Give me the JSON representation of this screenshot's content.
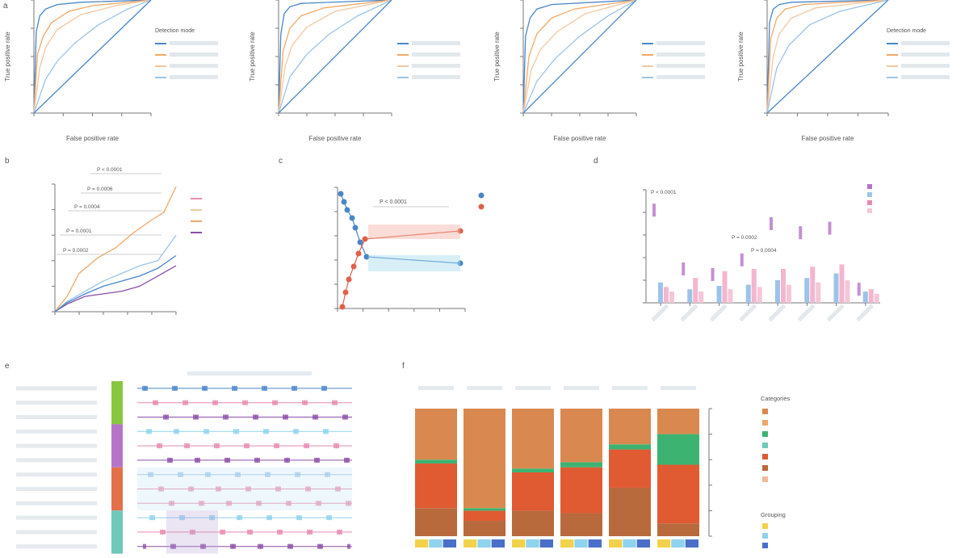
{
  "colors": {
    "blue": "#4a86c8",
    "orange": "#f0a868",
    "peach": "#f4c7a0",
    "lightblue": "#9cc4e8",
    "purple": "#8b4fa8",
    "pink": "#e889b0",
    "cyan": "#7ec8e3",
    "red": "#e0604a",
    "green": "#8ac540",
    "violet": "#b475c8",
    "coral": "#e4704a",
    "teal": "#6fc9b8",
    "tan": "#d9894f",
    "dark_tan": "#b86a3c",
    "red_orange": "#e05a32",
    "bright_green": "#3cb371",
    "yellow": "#f2d24a",
    "sky": "#8fd3ee",
    "navy": "#4a6fc8"
  },
  "chart_data": [
    {
      "type": "line",
      "panel": "a1",
      "xlabel": "False positive rate",
      "ylabel": "True positive rate",
      "xlim": [
        0,
        1
      ],
      "ylim": [
        0,
        1
      ],
      "legend_title": "Detection mode",
      "series": [
        {
          "name": "",
          "color": "#4a86c8",
          "points": [
            [
              0,
              0
            ],
            [
              0.02,
              0.72
            ],
            [
              0.05,
              0.86
            ],
            [
              0.1,
              0.92
            ],
            [
              0.2,
              0.96
            ],
            [
              0.4,
              0.98
            ],
            [
              1,
              1
            ]
          ]
        },
        {
          "name": "",
          "color": "#f0a868",
          "points": [
            [
              0,
              0
            ],
            [
              0.03,
              0.52
            ],
            [
              0.08,
              0.68
            ],
            [
              0.15,
              0.8
            ],
            [
              0.3,
              0.9
            ],
            [
              0.5,
              0.95
            ],
            [
              1,
              1
            ]
          ]
        },
        {
          "name": "",
          "color": "#f4c7a0",
          "points": [
            [
              0,
              0
            ],
            [
              0.05,
              0.4
            ],
            [
              0.1,
              0.58
            ],
            [
              0.2,
              0.74
            ],
            [
              0.4,
              0.87
            ],
            [
              0.7,
              0.95
            ],
            [
              1,
              1
            ]
          ]
        },
        {
          "name": "",
          "color": "#9cc4e8",
          "points": [
            [
              0,
              0
            ],
            [
              0.1,
              0.3
            ],
            [
              0.2,
              0.46
            ],
            [
              0.35,
              0.62
            ],
            [
              0.55,
              0.78
            ],
            [
              0.8,
              0.92
            ],
            [
              1,
              1
            ]
          ]
        },
        {
          "name": "",
          "color": "#4a86c8",
          "dashed": true,
          "points": [
            [
              0,
              0
            ],
            [
              1,
              1
            ]
          ]
        }
      ]
    },
    {
      "type": "line",
      "panel": "a2",
      "xlabel": "False positive rate",
      "ylabel": "True positive rate",
      "xlim": [
        0,
        1
      ],
      "ylim": [
        0,
        1
      ],
      "series": [
        {
          "name": "",
          "color": "#4a86c8",
          "points": [
            [
              0,
              0
            ],
            [
              0.02,
              0.7
            ],
            [
              0.05,
              0.88
            ],
            [
              0.1,
              0.94
            ],
            [
              0.2,
              0.97
            ],
            [
              1,
              1
            ]
          ]
        },
        {
          "name": "",
          "color": "#f0a868",
          "points": [
            [
              0,
              0
            ],
            [
              0.04,
              0.55
            ],
            [
              0.1,
              0.75
            ],
            [
              0.2,
              0.86
            ],
            [
              0.4,
              0.93
            ],
            [
              1,
              1
            ]
          ]
        },
        {
          "name": "",
          "color": "#f4c7a0",
          "points": [
            [
              0,
              0
            ],
            [
              0.06,
              0.42
            ],
            [
              0.12,
              0.6
            ],
            [
              0.25,
              0.76
            ],
            [
              0.5,
              0.9
            ],
            [
              1,
              1
            ]
          ]
        },
        {
          "name": "",
          "color": "#9cc4e8",
          "points": [
            [
              0,
              0
            ],
            [
              0.1,
              0.32
            ],
            [
              0.25,
              0.52
            ],
            [
              0.45,
              0.7
            ],
            [
              0.7,
              0.86
            ],
            [
              1,
              1
            ]
          ]
        },
        {
          "name": "",
          "color": "#4a86c8",
          "dashed": true,
          "points": [
            [
              0,
              0
            ],
            [
              1,
              1
            ]
          ]
        }
      ]
    },
    {
      "type": "line",
      "panel": "a3",
      "xlabel": "False positive rate",
      "ylabel": "True positive rate",
      "xlim": [
        0,
        1
      ],
      "ylim": [
        0,
        1
      ],
      "series": [
        {
          "name": "",
          "color": "#4a86c8",
          "points": [
            [
              0,
              0
            ],
            [
              0.02,
              0.68
            ],
            [
              0.06,
              0.84
            ],
            [
              0.12,
              0.92
            ],
            [
              0.25,
              0.96
            ],
            [
              1,
              1
            ]
          ]
        },
        {
          "name": "",
          "color": "#f0a868",
          "points": [
            [
              0,
              0
            ],
            [
              0.05,
              0.5
            ],
            [
              0.12,
              0.7
            ],
            [
              0.25,
              0.84
            ],
            [
              0.45,
              0.92
            ],
            [
              1,
              1
            ]
          ]
        },
        {
          "name": "",
          "color": "#f4c7a0",
          "points": [
            [
              0,
              0
            ],
            [
              0.07,
              0.38
            ],
            [
              0.15,
              0.56
            ],
            [
              0.3,
              0.72
            ],
            [
              0.55,
              0.88
            ],
            [
              1,
              1
            ]
          ]
        },
        {
          "name": "",
          "color": "#9cc4e8",
          "points": [
            [
              0,
              0
            ],
            [
              0.12,
              0.28
            ],
            [
              0.28,
              0.48
            ],
            [
              0.5,
              0.68
            ],
            [
              0.75,
              0.86
            ],
            [
              1,
              1
            ]
          ]
        },
        {
          "name": "",
          "color": "#4a86c8",
          "dashed": true,
          "points": [
            [
              0,
              0
            ],
            [
              1,
              1
            ]
          ]
        }
      ]
    },
    {
      "type": "line",
      "panel": "a4",
      "xlabel": "False positive rate",
      "ylabel": "True positive rate",
      "xlim": [
        0,
        1
      ],
      "ylim": [
        0,
        1
      ],
      "legend_title": "Detection mode",
      "series": [
        {
          "name": "",
          "color": "#4a86c8",
          "points": [
            [
              0,
              0
            ],
            [
              0.02,
              0.8
            ],
            [
              0.05,
              0.92
            ],
            [
              0.1,
              0.96
            ],
            [
              0.2,
              0.98
            ],
            [
              1,
              1
            ]
          ]
        },
        {
          "name": "",
          "color": "#f0a868",
          "points": [
            [
              0,
              0
            ],
            [
              0.03,
              0.66
            ],
            [
              0.08,
              0.84
            ],
            [
              0.15,
              0.92
            ],
            [
              0.3,
              0.96
            ],
            [
              1,
              1
            ]
          ]
        },
        {
          "name": "",
          "color": "#f4c7a0",
          "points": [
            [
              0,
              0
            ],
            [
              0.05,
              0.5
            ],
            [
              0.1,
              0.7
            ],
            [
              0.2,
              0.84
            ],
            [
              0.4,
              0.93
            ],
            [
              1,
              1
            ]
          ]
        },
        {
          "name": "",
          "color": "#9cc4e8",
          "points": [
            [
              0,
              0
            ],
            [
              0.08,
              0.4
            ],
            [
              0.18,
              0.6
            ],
            [
              0.35,
              0.78
            ],
            [
              0.6,
              0.9
            ],
            [
              1,
              1
            ]
          ]
        },
        {
          "name": "",
          "color": "#4a86c8",
          "dashed": true,
          "points": [
            [
              0,
              0
            ],
            [
              1,
              1
            ]
          ]
        }
      ]
    },
    {
      "type": "line",
      "panel": "b",
      "xlim": [
        0,
        1
      ],
      "ylim": [
        0,
        1
      ],
      "annotations": [
        "P < 0.0001",
        "P = 0.0006",
        "P = 0.0004",
        "P = 0.0001",
        "P = 0.0002"
      ],
      "series": [
        {
          "name": "",
          "color": "#f0a868",
          "points": [
            [
              0,
              0
            ],
            [
              0.1,
              0.12
            ],
            [
              0.2,
              0.3
            ],
            [
              0.35,
              0.42
            ],
            [
              0.5,
              0.5
            ],
            [
              0.65,
              0.62
            ],
            [
              0.8,
              0.72
            ],
            [
              0.9,
              0.78
            ],
            [
              1,
              0.98
            ]
          ]
        },
        {
          "name": "",
          "color": "#9cc4e8",
          "points": [
            [
              0,
              0
            ],
            [
              0.1,
              0.08
            ],
            [
              0.25,
              0.16
            ],
            [
              0.4,
              0.24
            ],
            [
              0.55,
              0.3
            ],
            [
              0.7,
              0.36
            ],
            [
              0.85,
              0.4
            ],
            [
              1,
              0.6
            ]
          ]
        },
        {
          "name": "",
          "color": "#8b4fa8",
          "points": [
            [
              0,
              0
            ],
            [
              0.1,
              0.06
            ],
            [
              0.25,
              0.12
            ],
            [
              0.4,
              0.14
            ],
            [
              0.55,
              0.16
            ],
            [
              0.7,
              0.2
            ],
            [
              0.85,
              0.28
            ],
            [
              1,
              0.36
            ]
          ]
        },
        {
          "name": "",
          "color": "#4a86c8",
          "points": [
            [
              0,
              0
            ],
            [
              0.1,
              0.07
            ],
            [
              0.25,
              0.14
            ],
            [
              0.4,
              0.2
            ],
            [
              0.55,
              0.24
            ],
            [
              0.7,
              0.28
            ],
            [
              0.85,
              0.34
            ],
            [
              1,
              0.44
            ]
          ]
        }
      ]
    },
    {
      "type": "scatter",
      "panel": "c",
      "annotation": "P < 0.0001",
      "legend": [
        {
          "name": "",
          "color": "#4a86c8"
        },
        {
          "name": "",
          "color": "#e0604a"
        }
      ]
    },
    {
      "type": "bar",
      "panel": "d",
      "categories": [
        "",
        "",
        "",
        "",
        "",
        "",
        "",
        ""
      ],
      "annotations": [
        "P < 0.0001",
        "P = 0.0002",
        "P = 0.0004"
      ],
      "series": [
        {
          "name": "",
          "color": "#b475c8",
          "values": [
            0.82,
            0.3,
            0.25,
            0.38,
            0.7,
            0.62,
            0.66,
            0.12
          ]
        },
        {
          "name": "",
          "color": "#9cc4e8",
          "values": [
            0.18,
            0.12,
            0.15,
            0.16,
            0.2,
            0.22,
            0.26,
            0.1
          ]
        },
        {
          "name": "",
          "color": "#f4b6cf",
          "values": [
            0.14,
            0.22,
            0.28,
            0.3,
            0.3,
            0.32,
            0.34,
            0.12
          ]
        },
        {
          "name": "",
          "color": "#f4c7d8",
          "values": [
            0.1,
            0.1,
            0.12,
            0.14,
            0.16,
            0.18,
            0.2,
            0.08
          ]
        }
      ]
    },
    {
      "type": "heatmap",
      "panel": "e",
      "title": "",
      "rows": [
        "",
        "",
        "",
        "",
        "",
        "",
        "",
        "",
        "",
        "",
        "",
        ""
      ],
      "row_group_colors": [
        "#8ac540",
        "#b475c8",
        "#e4704a",
        "#6fc9b8"
      ]
    },
    {
      "type": "bar",
      "panel": "f",
      "stacked": true,
      "group_titles": [
        "",
        "",
        "",
        "",
        ""
      ],
      "legend_title": "Categories",
      "legend2_title": "Grouping",
      "columns": [
        {
          "layers": [
            0.22,
            0.35,
            0.03,
            0.4
          ]
        },
        {
          "layers": [
            0.12,
            0.08,
            0.02,
            0.78
          ]
        },
        {
          "layers": [
            0.2,
            0.3,
            0.03,
            0.47
          ]
        },
        {
          "layers": [
            0.18,
            0.36,
            0.04,
            0.42
          ]
        },
        {
          "layers": [
            0.38,
            0.3,
            0.04,
            0.28
          ]
        },
        {
          "layers": [
            0.1,
            0.46,
            0.24,
            0.2
          ]
        }
      ],
      "layer_colors": [
        "#b86a3c",
        "#e05a32",
        "#3cb371",
        "#d9894f"
      ],
      "grouping_colors": [
        "#f2d24a",
        "#8fd3ee",
        "#4a6fc8"
      ]
    }
  ]
}
